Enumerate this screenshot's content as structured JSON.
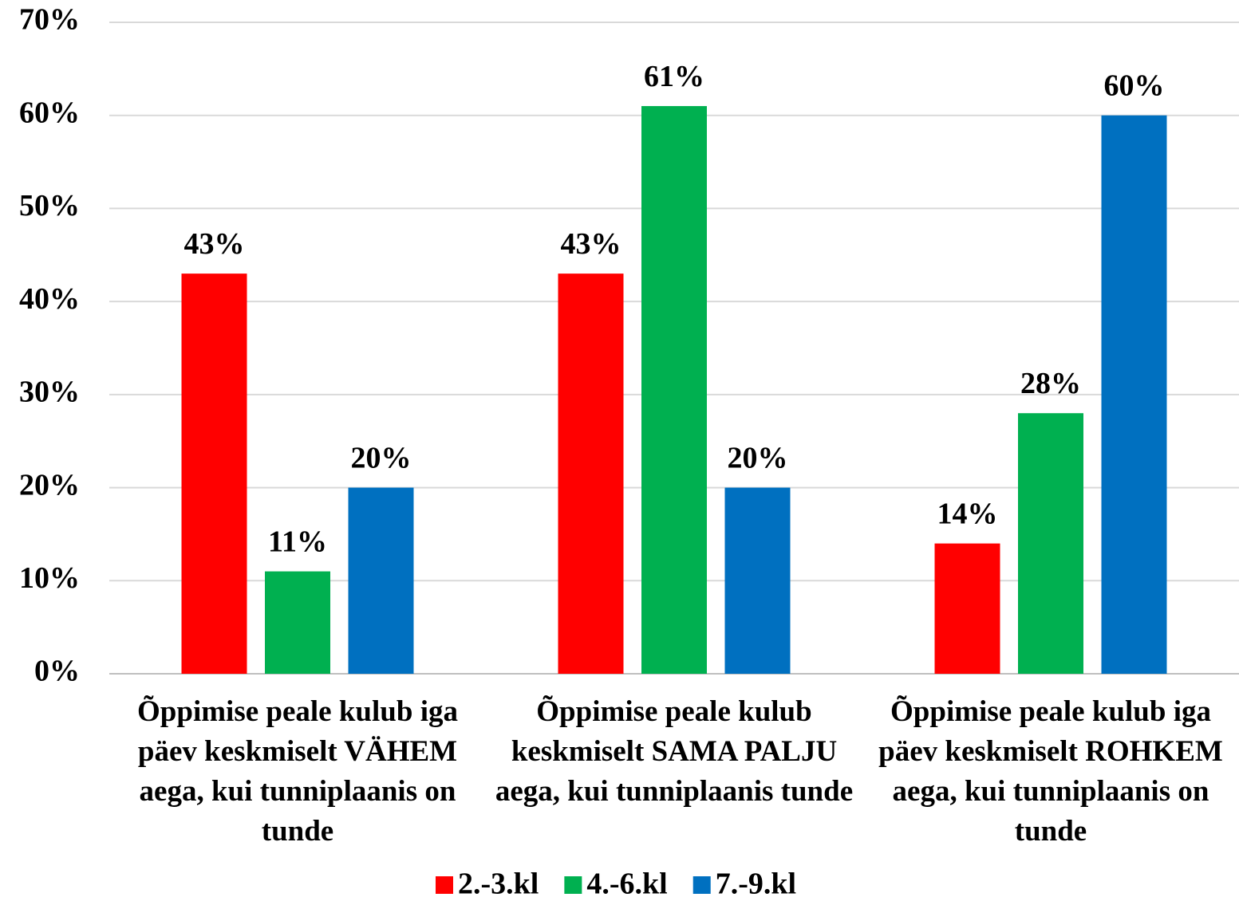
{
  "chart_data": {
    "type": "bar",
    "categories": [
      "Õppimise peale kulub iga päev keskmiselt VÄHEM aega, kui tunniplaanis on tunde",
      "Õppimise peale kulub keskmiselt SAMA PALJU aega, kui tunniplaanis tunde",
      "Õppimise peale kulub iga päev keskmiselt ROHKEM aega, kui tunniplaanis on tunde"
    ],
    "series": [
      {
        "name": "2.-3.kl",
        "color": "#ff0000",
        "values": [
          43,
          43,
          14
        ],
        "value_labels": [
          "43%",
          "43%",
          "14%"
        ]
      },
      {
        "name": "4.-6.kl",
        "color": "#00b050",
        "values": [
          11,
          61,
          28
        ],
        "value_labels": [
          "11%",
          "61%",
          "28%"
        ]
      },
      {
        "name": "7.-9.kl",
        "color": "#0070c0",
        "values": [
          20,
          20,
          60
        ],
        "value_labels": [
          "20%",
          "20%",
          "60%"
        ]
      }
    ],
    "ylim": [
      0,
      70
    ],
    "yticks": [
      {
        "value": 0,
        "label": "0%"
      },
      {
        "value": 10,
        "label": "10%"
      },
      {
        "value": 20,
        "label": "20%"
      },
      {
        "value": 30,
        "label": "30%"
      },
      {
        "value": 40,
        "label": "40%"
      },
      {
        "value": 50,
        "label": "50%"
      },
      {
        "value": 60,
        "label": "60%"
      },
      {
        "value": 70,
        "label": "70%"
      }
    ],
    "grid": true,
    "legend": "bottom"
  }
}
